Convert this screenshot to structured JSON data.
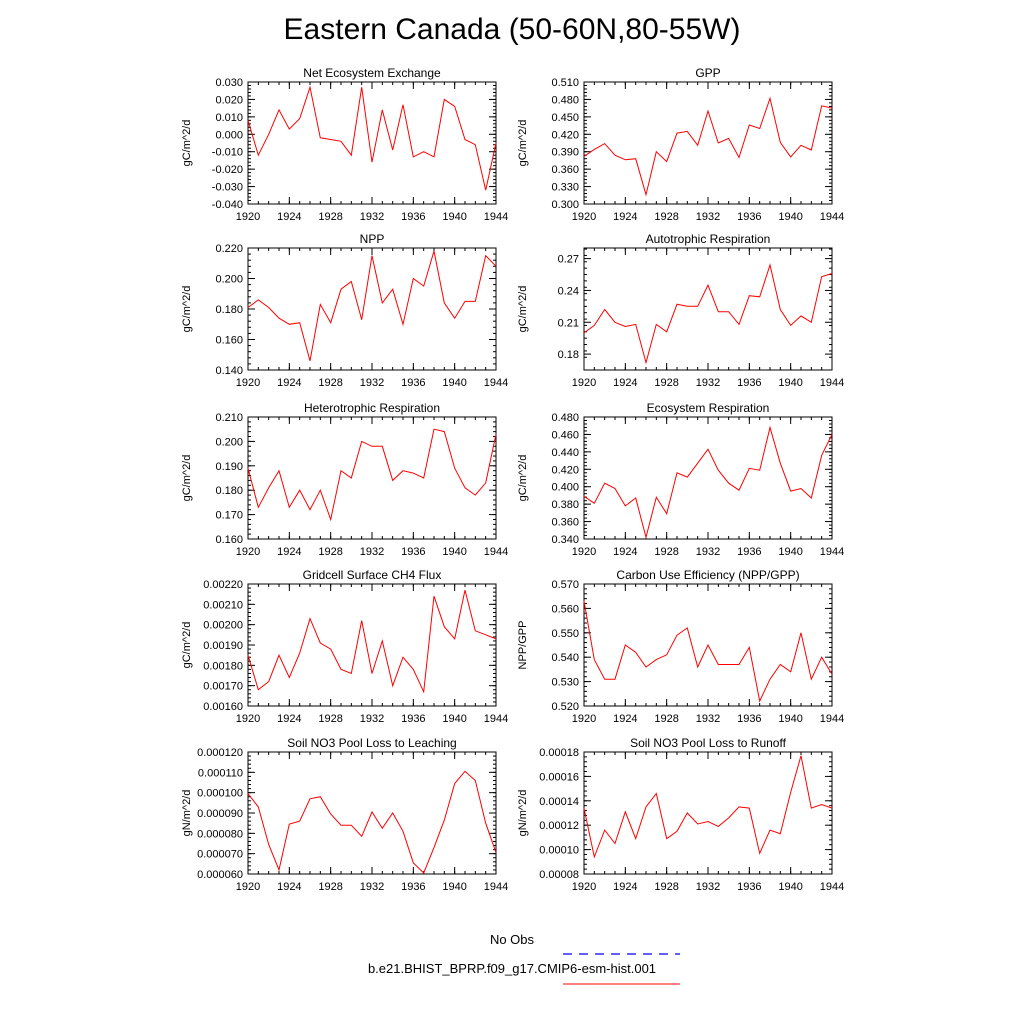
{
  "title": "Eastern Canada (50-60N,80-55W)",
  "colors": {
    "series": "#ff0000",
    "obs": "#0000ff",
    "axis": "#000000"
  },
  "legend": {
    "obs_label": "No Obs",
    "model_label": "b.e21.BHIST_BPRP.f09_g17.CMIP6-esm-hist.001"
  },
  "chart_data": [
    {
      "type": "line",
      "title": "Net Ecosystem Exchange",
      "ylabel": "gC/m^2/d",
      "xlim": [
        1920,
        1944
      ],
      "ylim": [
        -0.04,
        0.03
      ],
      "xticks": [
        "1920",
        "1924",
        "1928",
        "1932",
        "1936",
        "1940",
        "1944"
      ],
      "yticks": [
        "-0.040",
        "-0.030",
        "-0.020",
        "-0.010",
        "0.000",
        "0.010",
        "0.020",
        "0.030"
      ],
      "x": [
        1920,
        1921,
        1922,
        1923,
        1924,
        1925,
        1926,
        1927,
        1928,
        1929,
        1930,
        1931,
        1932,
        1933,
        1934,
        1935,
        1936,
        1937,
        1938,
        1939,
        1940,
        1941,
        1942,
        1943,
        1944
      ],
      "values": [
        0.008,
        -0.012,
        0.0,
        0.014,
        0.003,
        0.009,
        0.027,
        -0.002,
        -0.003,
        -0.004,
        -0.012,
        0.027,
        -0.016,
        0.014,
        -0.009,
        0.017,
        -0.013,
        -0.01,
        -0.013,
        0.02,
        0.016,
        -0.003,
        -0.006,
        -0.032,
        -0.005
      ]
    },
    {
      "type": "line",
      "title": "GPP",
      "ylabel": "gC/m^2/d",
      "xlim": [
        1920,
        1944
      ],
      "ylim": [
        0.3,
        0.51
      ],
      "xticks": [
        "1920",
        "1924",
        "1928",
        "1932",
        "1936",
        "1940",
        "1944"
      ],
      "yticks": [
        "0.300",
        "0.330",
        "0.360",
        "0.390",
        "0.420",
        "0.450",
        "0.480",
        "0.510"
      ],
      "x": [
        1920,
        1921,
        1922,
        1923,
        1924,
        1925,
        1926,
        1927,
        1928,
        1929,
        1930,
        1931,
        1932,
        1933,
        1934,
        1935,
        1936,
        1937,
        1938,
        1939,
        1940,
        1941,
        1942,
        1943,
        1944
      ],
      "values": [
        0.382,
        0.394,
        0.404,
        0.384,
        0.376,
        0.378,
        0.316,
        0.39,
        0.373,
        0.422,
        0.425,
        0.401,
        0.46,
        0.405,
        0.413,
        0.38,
        0.436,
        0.43,
        0.482,
        0.406,
        0.381,
        0.401,
        0.393,
        0.469,
        0.465
      ]
    },
    {
      "type": "line",
      "title": "NPP",
      "ylabel": "gC/m^2/d",
      "xlim": [
        1920,
        1944
      ],
      "ylim": [
        0.14,
        0.22
      ],
      "xticks": [
        "1920",
        "1924",
        "1928",
        "1932",
        "1936",
        "1940",
        "1944"
      ],
      "yticks": [
        "0.140",
        "0.160",
        "0.180",
        "0.200",
        "0.220"
      ],
      "x": [
        1920,
        1921,
        1922,
        1923,
        1924,
        1925,
        1926,
        1927,
        1928,
        1929,
        1930,
        1931,
        1932,
        1933,
        1934,
        1935,
        1936,
        1937,
        1938,
        1939,
        1940,
        1941,
        1942,
        1943,
        1944
      ],
      "values": [
        0.181,
        0.186,
        0.181,
        0.174,
        0.17,
        0.171,
        0.146,
        0.183,
        0.171,
        0.193,
        0.198,
        0.173,
        0.215,
        0.184,
        0.193,
        0.17,
        0.2,
        0.195,
        0.218,
        0.184,
        0.174,
        0.185,
        0.185,
        0.215,
        0.208
      ]
    },
    {
      "type": "line",
      "title": "Autotrophic Respiration",
      "ylabel": "gC/m^2/d",
      "xlim": [
        1920,
        1944
      ],
      "ylim": [
        0.165,
        0.28
      ],
      "xticks": [
        "1920",
        "1924",
        "1928",
        "1932",
        "1936",
        "1940",
        "1944"
      ],
      "yticks": [
        "0.18",
        "0.21",
        "0.24",
        "0.27"
      ],
      "x": [
        1920,
        1921,
        1922,
        1923,
        1924,
        1925,
        1926,
        1927,
        1928,
        1929,
        1930,
        1931,
        1932,
        1933,
        1934,
        1935,
        1936,
        1937,
        1938,
        1939,
        1940,
        1941,
        1942,
        1943,
        1944
      ],
      "values": [
        0.2,
        0.207,
        0.222,
        0.21,
        0.206,
        0.208,
        0.172,
        0.208,
        0.201,
        0.227,
        0.225,
        0.225,
        0.245,
        0.22,
        0.22,
        0.208,
        0.235,
        0.234,
        0.264,
        0.222,
        0.207,
        0.216,
        0.21,
        0.253,
        0.256
      ]
    },
    {
      "type": "line",
      "title": "Heterotrophic Respiration",
      "ylabel": "gC/m^2/d",
      "xlim": [
        1920,
        1944
      ],
      "ylim": [
        0.16,
        0.21
      ],
      "xticks": [
        "1920",
        "1924",
        "1928",
        "1932",
        "1936",
        "1940",
        "1944"
      ],
      "yticks": [
        "0.160",
        "0.170",
        "0.180",
        "0.190",
        "0.200",
        "0.210"
      ],
      "x": [
        1920,
        1921,
        1922,
        1923,
        1924,
        1925,
        1926,
        1927,
        1928,
        1929,
        1930,
        1931,
        1932,
        1933,
        1934,
        1935,
        1936,
        1937,
        1938,
        1939,
        1940,
        1941,
        1942,
        1943,
        1944
      ],
      "values": [
        0.189,
        0.173,
        0.181,
        0.188,
        0.173,
        0.18,
        0.172,
        0.18,
        0.168,
        0.188,
        0.185,
        0.2,
        0.198,
        0.198,
        0.184,
        0.188,
        0.187,
        0.185,
        0.205,
        0.204,
        0.189,
        0.181,
        0.178,
        0.183,
        0.203
      ]
    },
    {
      "type": "line",
      "title": "Ecosystem Respiration",
      "ylabel": "gC/m^2/d",
      "xlim": [
        1920,
        1944
      ],
      "ylim": [
        0.34,
        0.48
      ],
      "xticks": [
        "1920",
        "1924",
        "1928",
        "1932",
        "1936",
        "1940",
        "1944"
      ],
      "yticks": [
        "0.340",
        "0.360",
        "0.380",
        "0.400",
        "0.420",
        "0.440",
        "0.460",
        "0.480"
      ],
      "x": [
        1920,
        1921,
        1922,
        1923,
        1924,
        1925,
        1926,
        1927,
        1928,
        1929,
        1930,
        1931,
        1932,
        1933,
        1934,
        1935,
        1936,
        1937,
        1938,
        1939,
        1940,
        1941,
        1942,
        1943,
        1944
      ],
      "values": [
        0.389,
        0.381,
        0.404,
        0.398,
        0.378,
        0.387,
        0.342,
        0.388,
        0.369,
        0.416,
        0.411,
        0.427,
        0.443,
        0.419,
        0.404,
        0.396,
        0.421,
        0.419,
        0.468,
        0.427,
        0.395,
        0.398,
        0.387,
        0.436,
        0.46
      ]
    },
    {
      "type": "line",
      "title": "Gridcell Surface CH4 Flux",
      "ylabel": "gC/m^2/d",
      "xlim": [
        1920,
        1944
      ],
      "ylim": [
        0.0016,
        0.0022
      ],
      "xticks": [
        "1920",
        "1924",
        "1928",
        "1932",
        "1936",
        "1940",
        "1944"
      ],
      "yticks": [
        "0.00160",
        "0.00170",
        "0.00180",
        "0.00190",
        "0.00200",
        "0.00210",
        "0.00220"
      ],
      "x": [
        1920,
        1921,
        1922,
        1923,
        1924,
        1925,
        1926,
        1927,
        1928,
        1929,
        1930,
        1931,
        1932,
        1933,
        1934,
        1935,
        1936,
        1937,
        1938,
        1939,
        1940,
        1941,
        1942,
        1943,
        1944
      ],
      "values": [
        0.00185,
        0.00168,
        0.00172,
        0.00185,
        0.00174,
        0.00186,
        0.00203,
        0.00191,
        0.00188,
        0.00178,
        0.00176,
        0.00202,
        0.00176,
        0.00192,
        0.0017,
        0.00184,
        0.00178,
        0.00167,
        0.00214,
        0.00199,
        0.00193,
        0.00217,
        0.00197,
        0.00195,
        0.00193
      ]
    },
    {
      "type": "line",
      "title": "Carbon Use Efficiency (NPP/GPP)",
      "ylabel": "NPP/GPP",
      "xlim": [
        1920,
        1944
      ],
      "ylim": [
        0.52,
        0.57
      ],
      "xticks": [
        "1920",
        "1924",
        "1928",
        "1932",
        "1936",
        "1940",
        "1944"
      ],
      "yticks": [
        "0.520",
        "0.530",
        "0.540",
        "0.550",
        "0.560",
        "0.570"
      ],
      "x": [
        1920,
        1921,
        1922,
        1923,
        1924,
        1925,
        1926,
        1927,
        1928,
        1929,
        1930,
        1931,
        1932,
        1933,
        1934,
        1935,
        1936,
        1937,
        1938,
        1939,
        1940,
        1941,
        1942,
        1943,
        1944
      ],
      "values": [
        0.563,
        0.539,
        0.531,
        0.531,
        0.545,
        0.542,
        0.536,
        0.539,
        0.541,
        0.549,
        0.552,
        0.536,
        0.545,
        0.537,
        0.537,
        0.537,
        0.544,
        0.522,
        0.531,
        0.537,
        0.534,
        0.55,
        0.531,
        0.54,
        0.533
      ]
    },
    {
      "type": "line",
      "title": "Soil NO3 Pool Loss to Leaching",
      "ylabel": "gN/m^2/d",
      "xlim": [
        1920,
        1944
      ],
      "ylim": [
        6e-05,
        0.00012
      ],
      "xticks": [
        "1920",
        "1924",
        "1928",
        "1932",
        "1936",
        "1940",
        "1944"
      ],
      "yticks": [
        "0.000060",
        "0.000070",
        "0.000080",
        "0.000090",
        "0.000100",
        "0.000110",
        "0.000120"
      ],
      "x": [
        1920,
        1921,
        1922,
        1923,
        1924,
        1925,
        1926,
        1927,
        1928,
        1929,
        1930,
        1931,
        1932,
        1933,
        1934,
        1935,
        1936,
        1937,
        1938,
        1939,
        1940,
        1941,
        1942,
        1943,
        1944
      ],
      "values": [
        9.95e-05,
        9.3e-05,
        7.45e-05,
        6.2e-05,
        8.45e-05,
        8.6e-05,
        9.7e-05,
        9.8e-05,
        8.95e-05,
        8.4e-05,
        8.4e-05,
        7.85e-05,
        9.05e-05,
        8.25e-05,
        9e-05,
        8.1e-05,
        6.55e-05,
        6.05e-05,
        7.3e-05,
        8.65e-05,
        0.0001045,
        0.0001105,
        0.000106,
        8.5e-05,
        7.05e-05
      ]
    },
    {
      "type": "line",
      "title": "Soil NO3 Pool Loss to Runoff",
      "ylabel": "gN/m^2/d",
      "xlim": [
        1920,
        1944
      ],
      "ylim": [
        8e-05,
        0.00018
      ],
      "xticks": [
        "1920",
        "1924",
        "1928",
        "1932",
        "1936",
        "1940",
        "1944"
      ],
      "yticks": [
        "0.00008",
        "0.00010",
        "0.00012",
        "0.00014",
        "0.00016",
        "0.00018"
      ],
      "x": [
        1920,
        1921,
        1922,
        1923,
        1924,
        1925,
        1926,
        1927,
        1928,
        1929,
        1930,
        1931,
        1932,
        1933,
        1934,
        1935,
        1936,
        1937,
        1938,
        1939,
        1940,
        1941,
        1942,
        1943,
        1944
      ],
      "values": [
        0.000134,
        9.4e-05,
        0.000116,
        0.000105,
        0.000131,
        0.000109,
        0.000135,
        0.000146,
        0.000109,
        0.000115,
        0.00013,
        0.000121,
        0.000123,
        0.000119,
        0.000126,
        0.000135,
        0.000134,
        9.7e-05,
        0.000116,
        0.000113,
        0.000147,
        0.000177,
        0.000134,
        0.000137,
        0.000134
      ]
    }
  ]
}
